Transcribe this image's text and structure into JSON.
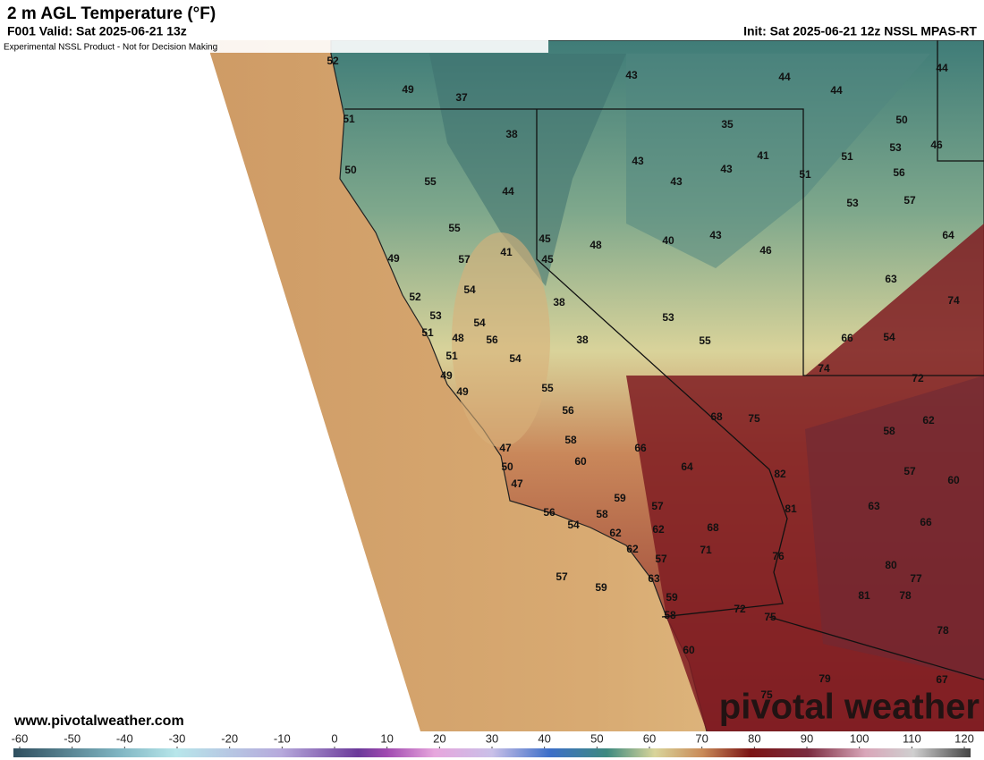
{
  "header": {
    "title": "2 m AGL Temperature (°F)",
    "valid": "F001 Valid: Sat 2025-06-21 13z",
    "init": "Init: Sat 2025-06-21 12z NSSL MPAS-RT",
    "disclaimer": "Experimental NSSL Product - Not for Decision Making"
  },
  "labels": [
    52,
    49,
    37,
    43,
    44,
    44,
    44,
    51,
    38,
    35,
    50,
    53,
    46,
    50,
    43,
    43,
    41,
    51,
    51,
    56,
    55,
    44,
    43,
    53,
    57,
    55,
    45,
    48,
    40,
    43,
    46,
    64,
    49,
    57,
    41,
    45,
    54,
    52,
    63,
    53,
    38,
    74,
    54,
    51,
    48,
    56,
    38,
    53,
    55,
    66,
    54,
    51,
    54,
    74,
    49,
    55,
    49,
    72,
    56,
    68,
    75,
    62,
    58,
    58,
    66,
    47,
    60,
    64,
    50,
    82,
    57,
    60,
    47,
    59,
    57,
    81,
    63,
    56,
    58,
    66,
    54,
    62,
    62,
    68,
    62,
    71,
    57,
    76,
    80,
    63,
    57,
    77,
    59,
    81,
    78,
    59,
    72,
    58,
    75,
    78,
    60,
    79,
    67,
    75
  ],
  "colorbar": {
    "ticks": [
      -60,
      -50,
      -40,
      -30,
      -20,
      -10,
      0,
      10,
      20,
      30,
      40,
      50,
      60,
      70,
      80,
      90,
      100,
      110,
      120
    ]
  },
  "footer": {
    "website": "www.pivotalweather.com",
    "logo": "pivotal weather"
  }
}
